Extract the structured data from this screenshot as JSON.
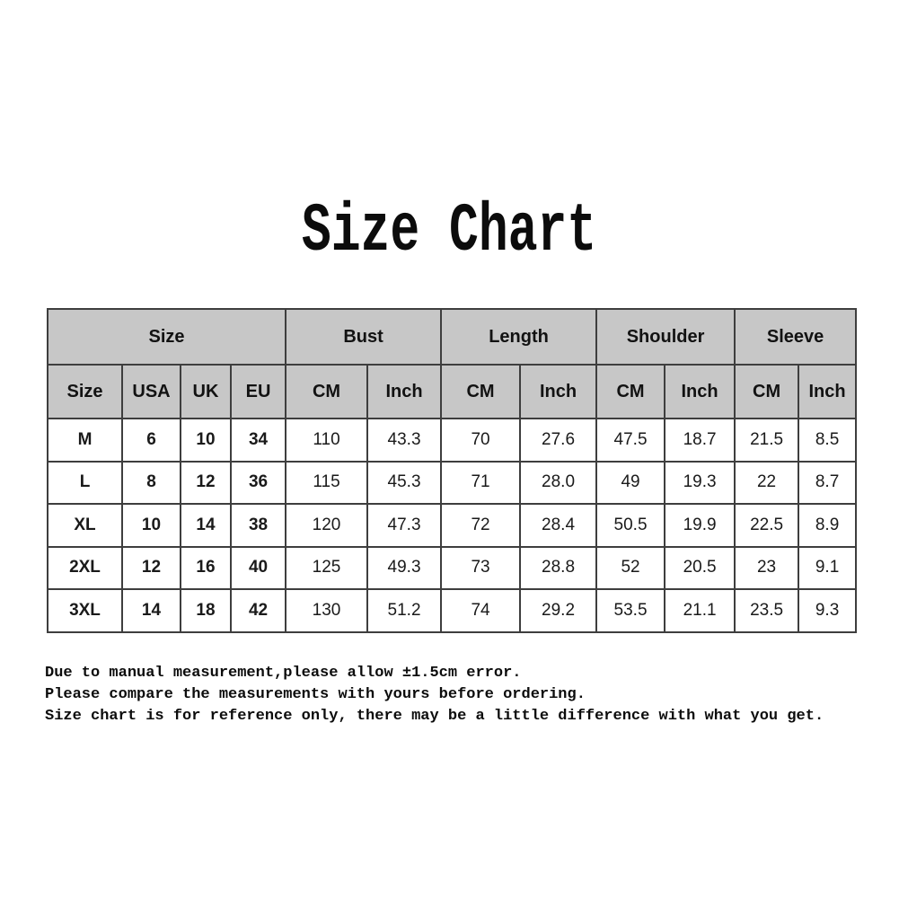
{
  "title": "Size Chart",
  "table": {
    "header_groups": [
      {
        "label": "Size"
      },
      {
        "label": "Bust"
      },
      {
        "label": "Length"
      },
      {
        "label": "Shoulder"
      },
      {
        "label": "Sleeve"
      }
    ],
    "subheaders": [
      "Size",
      "USA",
      "UK",
      "EU",
      "CM",
      "Inch",
      "CM",
      "Inch",
      "CM",
      "Inch",
      "CM",
      "Inch"
    ],
    "rows": [
      {
        "cells": [
          "M",
          "6",
          "10",
          "34",
          "110",
          "43.3",
          "70",
          "27.6",
          "47.5",
          "18.7",
          "21.5",
          "8.5"
        ]
      },
      {
        "cells": [
          "L",
          "8",
          "12",
          "36",
          "115",
          "45.3",
          "71",
          "28.0",
          "49",
          "19.3",
          "22",
          "8.7"
        ]
      },
      {
        "cells": [
          "XL",
          "10",
          "14",
          "38",
          "120",
          "47.3",
          "72",
          "28.4",
          "50.5",
          "19.9",
          "22.5",
          "8.9"
        ]
      },
      {
        "cells": [
          "2XL",
          "12",
          "16",
          "40",
          "125",
          "49.3",
          "73",
          "28.8",
          "52",
          "20.5",
          "23",
          "9.1"
        ]
      },
      {
        "cells": [
          "3XL",
          "14",
          "18",
          "42",
          "130",
          "51.2",
          "74",
          "29.2",
          "53.5",
          "21.1",
          "23.5",
          "9.3"
        ]
      }
    ],
    "colors": {
      "header_background": "#c7c7c7",
      "border": "#3e3e3e",
      "body_background": "#ffffff",
      "text": "#111111"
    }
  },
  "footer": {
    "lines": [
      "Due to manual measurement,please allow ±1.5cm error.",
      "Please compare the measurements with yours before ordering.",
      "Size chart is for reference only, there may be a little difference with what you get."
    ]
  }
}
